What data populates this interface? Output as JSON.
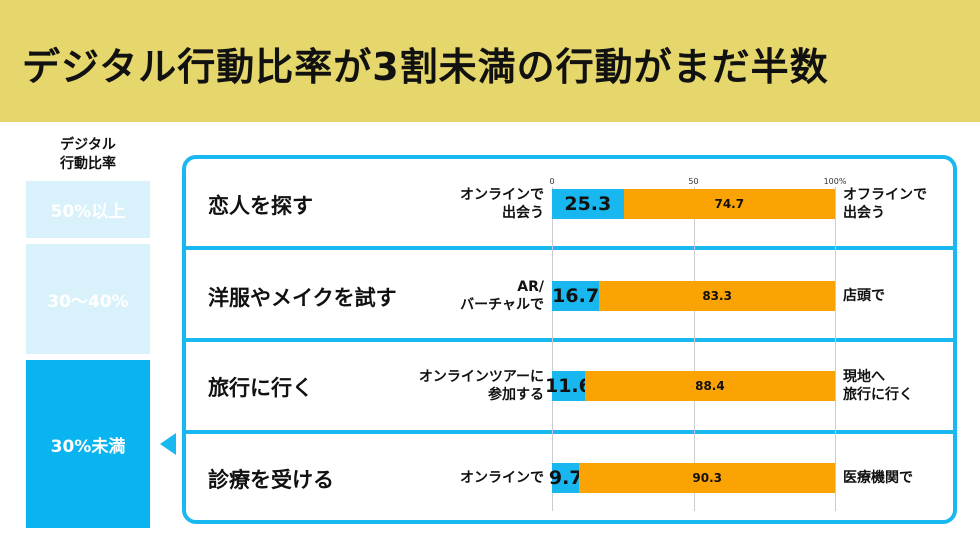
{
  "title": "デジタル行動比率が3割未満の行動がまだ半数",
  "left": {
    "heading_line1": "デジタル",
    "heading_line2": "行動比率",
    "levels": [
      {
        "label": "50%以上",
        "color": "#d8f1fb"
      },
      {
        "label": "30〜40%",
        "color": "#d8f1fb"
      },
      {
        "label": "30%未満",
        "color": "#0ab4f0"
      }
    ]
  },
  "chart_data": {
    "type": "bar",
    "stacked": true,
    "xlim": [
      0,
      100
    ],
    "ticks": [
      "0",
      "50",
      "100%"
    ],
    "series": [
      {
        "name": "digital",
        "color": "#19b7ef"
      },
      {
        "name": "offline",
        "color": "#fca304"
      }
    ],
    "rows": [
      {
        "activity": "恋人を探す",
        "left_label": [
          "オンラインで",
          "出会う"
        ],
        "right_label": [
          "オフラインで",
          "出会う"
        ],
        "digital": 25.3,
        "offline": 74.7
      },
      {
        "activity": "洋服やメイクを試す",
        "left_label": [
          "AR/",
          "バーチャルで"
        ],
        "right_label": [
          "店頭で"
        ],
        "digital": 16.7,
        "offline": 83.3
      },
      {
        "activity": "旅行に行く",
        "left_label": [
          "オンラインツアーに",
          "参加する"
        ],
        "right_label": [
          "現地へ",
          "旅行に行く"
        ],
        "digital": 11.6,
        "offline": 88.4
      },
      {
        "activity": "診療を受ける",
        "left_label": [
          "オンラインで"
        ],
        "right_label": [
          "医療機関で"
        ],
        "digital": 9.7,
        "offline": 90.3
      }
    ]
  }
}
